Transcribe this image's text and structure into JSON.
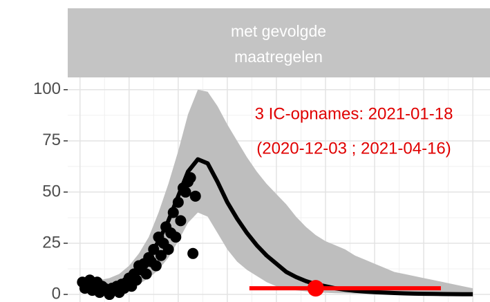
{
  "chart_data": {
    "type": "line",
    "facet_label": [
      "met gevolgde",
      "maatregelen"
    ],
    "xlim": [
      -5,
      167
    ],
    "xticks": [
      0,
      20,
      40,
      60,
      80,
      100,
      120,
      140,
      160
    ],
    "ylim": [
      -3.7,
      106
    ],
    "yticks": [
      0,
      25,
      50,
      75,
      100
    ],
    "grid": true,
    "band": {
      "color": "#bebebe",
      "x": [
        0,
        4,
        8,
        12,
        16,
        20,
        24,
        28,
        32,
        36,
        40,
        44,
        48,
        52,
        56,
        60,
        64,
        68,
        72,
        76,
        80,
        84,
        88,
        92,
        96,
        100,
        104,
        108,
        112,
        116,
        120,
        124,
        128,
        132,
        136,
        140,
        144,
        148,
        152,
        156,
        160
      ],
      "upper": [
        8,
        7,
        7,
        8,
        10,
        14,
        20,
        28,
        40,
        54,
        70,
        88,
        100,
        99,
        92,
        83,
        75,
        67,
        60,
        54,
        49,
        44,
        38,
        33,
        29,
        26,
        24,
        22,
        19,
        17,
        15,
        13,
        11,
        10,
        9,
        8,
        7,
        6,
        5,
        4,
        3
      ],
      "lower": [
        1,
        1,
        1,
        1,
        2,
        3,
        5,
        8,
        12,
        18,
        26,
        35,
        40,
        38,
        30,
        22,
        16,
        12,
        9,
        6,
        4,
        3,
        2,
        1.5,
        1,
        0.8,
        0.6,
        0.5,
        0.4,
        0.3,
        0.2,
        0.2,
        0.1,
        0.1,
        0.1,
        0,
        0,
        0,
        0,
        0,
        0
      ]
    },
    "series": [
      {
        "color": "#000000",
        "x": [
          0,
          4,
          8,
          12,
          16,
          20,
          24,
          28,
          32,
          36,
          40,
          44,
          48,
          52,
          56,
          60,
          64,
          68,
          72,
          76,
          80,
          84,
          88,
          92,
          96,
          100,
          104,
          108,
          112,
          116,
          120,
          124,
          128,
          132,
          136,
          140,
          144,
          148,
          152,
          156,
          160
        ],
        "values": [
          4,
          3,
          3,
          4,
          5,
          8,
          12,
          18,
          26,
          36,
          48,
          60,
          66,
          64,
          55,
          45,
          37,
          30,
          24,
          19,
          15,
          11,
          8.5,
          6.5,
          5,
          4,
          3,
          2.3,
          1.8,
          1.4,
          1.1,
          0.9,
          0.7,
          0.5,
          0.4,
          0.3,
          0.25,
          0.2,
          0.15,
          0.1,
          0.1
        ]
      }
    ],
    "points": {
      "color": "#000000",
      "x": [
        1,
        2,
        3,
        4,
        5,
        6,
        7,
        8,
        9,
        10,
        11,
        12,
        13,
        14,
        15,
        16,
        17,
        18,
        19,
        20,
        21,
        22,
        23,
        24,
        25,
        26,
        27,
        28,
        29,
        30,
        31,
        32,
        33,
        34,
        35,
        36,
        37,
        38,
        39,
        40,
        41,
        42,
        43,
        44,
        45,
        46,
        47
      ],
      "values": [
        6,
        3,
        5,
        7,
        2,
        4,
        6,
        1,
        4,
        3,
        2,
        0,
        3,
        2,
        4,
        1,
        5,
        3,
        6,
        8,
        4,
        10,
        7,
        14,
        12,
        15,
        10,
        18,
        16,
        22,
        14,
        28,
        19,
        25,
        33,
        22,
        30,
        40,
        28,
        45,
        36,
        52,
        50,
        55,
        57,
        20,
        48
      ]
    },
    "annotation": {
      "color": "#e00000",
      "lines": [
        "3 IC-opnames: 2021-01-18",
        "(2020-12-03 ; 2021-04-16)"
      ]
    },
    "interval": {
      "color": "#ff0000",
      "x": [
        69,
        147
      ],
      "y": 3
    },
    "estimate": {
      "color": "#ff0000",
      "x": 96,
      "y": 3
    }
  }
}
